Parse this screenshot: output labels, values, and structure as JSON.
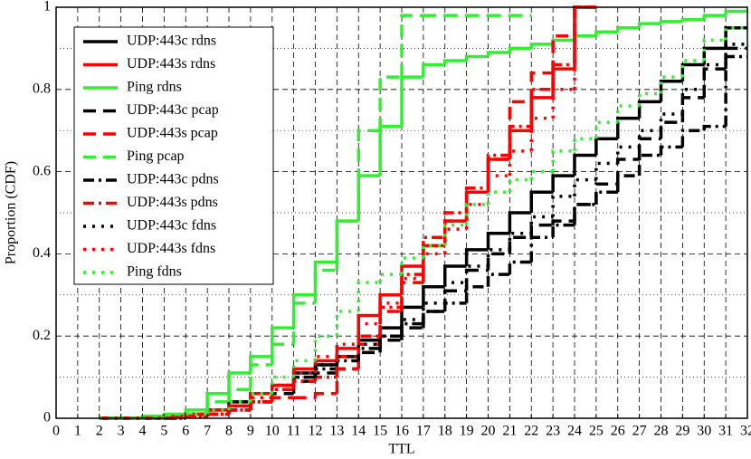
{
  "chart_data": {
    "type": "line",
    "xlabel": "TTL",
    "ylabel": "Proportion (CDF)",
    "xlim": [
      0,
      32
    ],
    "ylim": [
      0,
      1
    ],
    "xticks": [
      0,
      1,
      2,
      3,
      4,
      5,
      6,
      7,
      8,
      9,
      10,
      11,
      12,
      13,
      14,
      15,
      16,
      17,
      18,
      19,
      20,
      21,
      22,
      23,
      24,
      25,
      26,
      27,
      28,
      29,
      30,
      31,
      32
    ],
    "yticks": [
      0,
      0.2,
      0.4,
      0.6,
      0.8,
      1
    ],
    "yminorticks": [
      0.1,
      0.3,
      0.5,
      0.7,
      0.9
    ],
    "grid": true,
    "legend": "upper left",
    "step": true,
    "x": [
      0,
      1,
      2,
      3,
      4,
      5,
      6,
      7,
      8,
      9,
      10,
      11,
      12,
      13,
      14,
      15,
      16,
      17,
      18,
      19,
      20,
      21,
      22,
      23,
      24,
      25,
      26,
      27,
      28,
      29,
      30,
      31
    ],
    "series": [
      {
        "name": "UDP:443c rdns",
        "color": "#000000",
        "linestyle": "solid",
        "values": [
          null,
          null,
          0,
          0,
          0,
          0.005,
          0.01,
          0.02,
          0.04,
          0.06,
          0.08,
          0.11,
          0.13,
          0.15,
          0.19,
          0.22,
          0.27,
          0.32,
          0.37,
          0.41,
          0.45,
          0.5,
          0.55,
          0.59,
          0.64,
          0.68,
          0.73,
          0.77,
          0.82,
          0.86,
          0.9,
          0.95
        ]
      },
      {
        "name": "UDP:443s rdns",
        "color": "#ff0000",
        "linestyle": "solid",
        "values": [
          null,
          null,
          0,
          0,
          0,
          0.005,
          0.01,
          0.02,
          0.03,
          0.06,
          0.08,
          0.12,
          0.14,
          0.17,
          0.25,
          0.3,
          0.37,
          0.42,
          0.48,
          0.55,
          0.63,
          0.7,
          0.78,
          0.85,
          1,
          null,
          null,
          null,
          null,
          null,
          null,
          null
        ]
      },
      {
        "name": "Ping rdns",
        "color": "#33ee33",
        "linestyle": "solid",
        "values": [
          null,
          null,
          0,
          0,
          0.005,
          0.01,
          0.02,
          0.06,
          0.11,
          0.15,
          0.22,
          0.3,
          0.38,
          0.48,
          0.59,
          0.71,
          0.83,
          0.86,
          0.87,
          0.88,
          0.89,
          0.9,
          0.91,
          0.92,
          0.93,
          0.94,
          0.95,
          0.96,
          0.965,
          0.97,
          0.98,
          0.99
        ]
      },
      {
        "name": "UDP:443c pcap",
        "color": "#000000",
        "linestyle": "dashed",
        "values": [
          null,
          null,
          0,
          0,
          0,
          0,
          0.005,
          0.01,
          0.02,
          0.04,
          0.06,
          0.09,
          0.11,
          0.12,
          0.16,
          0.19,
          0.22,
          0.26,
          0.31,
          0.36,
          0.4,
          0.44,
          0.47,
          0.48,
          0.52,
          0.57,
          0.63,
          0.68,
          0.72,
          0.78,
          0.85,
          0.9
        ]
      },
      {
        "name": "UDP:443s pcap",
        "color": "#ff0000",
        "linestyle": "dashed",
        "values": [
          null,
          null,
          0,
          0,
          0,
          0,
          0.005,
          0.01,
          0.02,
          0.04,
          0.05,
          0.05,
          0.06,
          0.12,
          0.18,
          0.26,
          0.33,
          0.42,
          0.48,
          0.55,
          0.63,
          0.77,
          0.84,
          0.93,
          1,
          null,
          null,
          null,
          null,
          null,
          null,
          null
        ]
      },
      {
        "name": "Ping pcap",
        "color": "#33ee33",
        "linestyle": "dashed",
        "values": [
          null,
          null,
          0,
          0,
          0,
          0.005,
          0.01,
          0.04,
          0.07,
          0.13,
          0.18,
          0.28,
          0.36,
          0.48,
          0.7,
          0.83,
          0.98,
          0.98,
          0.98,
          0.98,
          0.98,
          0.98,
          null,
          null,
          null,
          null,
          null,
          null,
          null,
          null,
          null,
          null
        ]
      },
      {
        "name": "UDP:443c pdns",
        "color": "#000000",
        "linestyle": "dashdot",
        "values": [
          null,
          null,
          0,
          0,
          0,
          0,
          0.005,
          0.01,
          0.02,
          0.04,
          0.07,
          0.1,
          0.12,
          0.14,
          0.17,
          0.2,
          0.23,
          0.26,
          0.28,
          0.32,
          0.35,
          0.38,
          0.44,
          0.47,
          0.52,
          0.55,
          0.59,
          0.64,
          0.66,
          0.7,
          0.71,
          0.88
        ]
      },
      {
        "name": "UDP:443s pdns",
        "color": "#ff0000",
        "linestyle": "dashdot",
        "values": [
          null,
          null,
          0,
          0,
          0,
          0,
          0.005,
          0.01,
          0.02,
          0.04,
          0.07,
          0.09,
          0.1,
          0.15,
          0.2,
          0.27,
          0.35,
          0.44,
          0.5,
          0.56,
          0.64,
          0.71,
          0.8,
          0.86,
          1,
          null,
          null,
          null,
          null,
          null,
          null,
          null
        ]
      },
      {
        "name": "UDP:443c fdns",
        "color": "#000000",
        "linestyle": "dotted",
        "values": [
          null,
          null,
          0,
          0,
          0,
          0.005,
          0.01,
          0.02,
          0.03,
          0.05,
          0.08,
          0.1,
          0.13,
          0.15,
          0.18,
          0.2,
          0.24,
          0.28,
          0.33,
          0.37,
          0.41,
          0.45,
          0.49,
          0.54,
          0.58,
          0.62,
          0.66,
          0.7,
          0.74,
          0.8,
          0.86,
          0.91
        ]
      },
      {
        "name": "UDP:443s fdns",
        "color": "#ff0000",
        "linestyle": "dotted",
        "values": [
          null,
          null,
          0,
          0,
          0,
          0.005,
          0.01,
          0.02,
          0.03,
          0.05,
          0.08,
          0.11,
          0.15,
          0.18,
          0.23,
          0.28,
          0.34,
          0.4,
          0.46,
          0.52,
          0.59,
          0.65,
          0.73,
          0.8,
          1,
          null,
          null,
          null,
          null,
          null,
          null,
          null
        ]
      },
      {
        "name": "Ping fdns",
        "color": "#33ee33",
        "linestyle": "dotted",
        "values": [
          null,
          null,
          0,
          0,
          0,
          0.01,
          0.01,
          0.02,
          0.04,
          0.06,
          0.1,
          0.14,
          0.2,
          0.26,
          0.33,
          0.35,
          0.39,
          0.42,
          0.47,
          0.52,
          0.55,
          0.58,
          0.6,
          0.65,
          0.68,
          0.72,
          0.76,
          0.79,
          0.83,
          0.87,
          0.92,
          0.95
        ]
      }
    ]
  }
}
